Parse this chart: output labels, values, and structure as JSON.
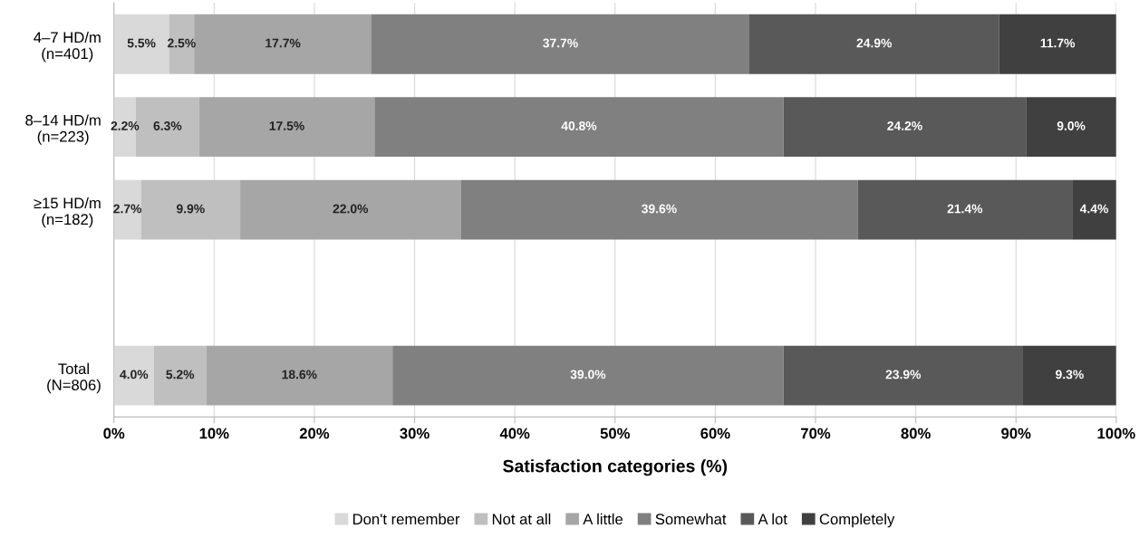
{
  "chart_data": {
    "type": "bar",
    "orientation": "horizontal",
    "stacked": true,
    "xlabel": "Satisfaction categories (%)",
    "categories": [
      "4–7 HD/m\n(n=401)",
      "8–14 HD/m\n(n=223)",
      "≥15 HD/m\n(n=182)",
      null,
      "Total\n(N=806)"
    ],
    "series": [
      {
        "name": "Don't remember",
        "color": "#d9d9d9",
        "values": [
          5.5,
          2.2,
          2.7,
          null,
          4.0
        ],
        "value_labels": [
          "5.5%",
          "2.2%",
          "2.7%",
          null,
          "4.0%"
        ]
      },
      {
        "name": "Not at all",
        "color": "#bfbfbf",
        "values": [
          2.5,
          6.3,
          9.9,
          null,
          5.2
        ],
        "value_labels": [
          "2.5%",
          "6.3%",
          "9.9%",
          null,
          "5.2%"
        ]
      },
      {
        "name": "A little",
        "color": "#a6a6a6",
        "values": [
          17.7,
          17.5,
          22.0,
          null,
          18.6
        ],
        "value_labels": [
          "17.7%",
          "17.5%",
          "22.0%",
          null,
          "18.6%"
        ]
      },
      {
        "name": "Somewhat",
        "color": "#808080",
        "values": [
          37.7,
          40.8,
          39.6,
          null,
          39.0
        ],
        "value_labels": [
          "37.7%",
          "40.8%",
          "39.6%",
          null,
          "39.0%"
        ]
      },
      {
        "name": "A lot",
        "color": "#595959",
        "values": [
          24.9,
          24.2,
          21.4,
          null,
          23.9
        ],
        "value_labels": [
          "24.9%",
          "24.2%",
          "21.4%",
          null,
          "23.9%"
        ]
      },
      {
        "name": "Completely",
        "color": "#404040",
        "values": [
          11.7,
          9.0,
          4.4,
          null,
          9.3
        ],
        "value_labels": [
          "11.7%",
          "9.0%",
          "4.4%",
          null,
          "9.3%"
        ]
      }
    ],
    "xlim": [
      0,
      100
    ],
    "xticks": [
      {
        "value": 0,
        "label": "0%"
      },
      {
        "value": 10,
        "label": "10%"
      },
      {
        "value": 20,
        "label": "20%"
      },
      {
        "value": 30,
        "label": "30%"
      },
      {
        "value": 40,
        "label": "40%"
      },
      {
        "value": 50,
        "label": "50%"
      },
      {
        "value": 60,
        "label": "60%"
      },
      {
        "value": 70,
        "label": "70%"
      },
      {
        "value": 80,
        "label": "80%"
      },
      {
        "value": 90,
        "label": "90%"
      },
      {
        "value": 100,
        "label": "100%"
      }
    ],
    "grid": "x",
    "legend": "bottom"
  }
}
